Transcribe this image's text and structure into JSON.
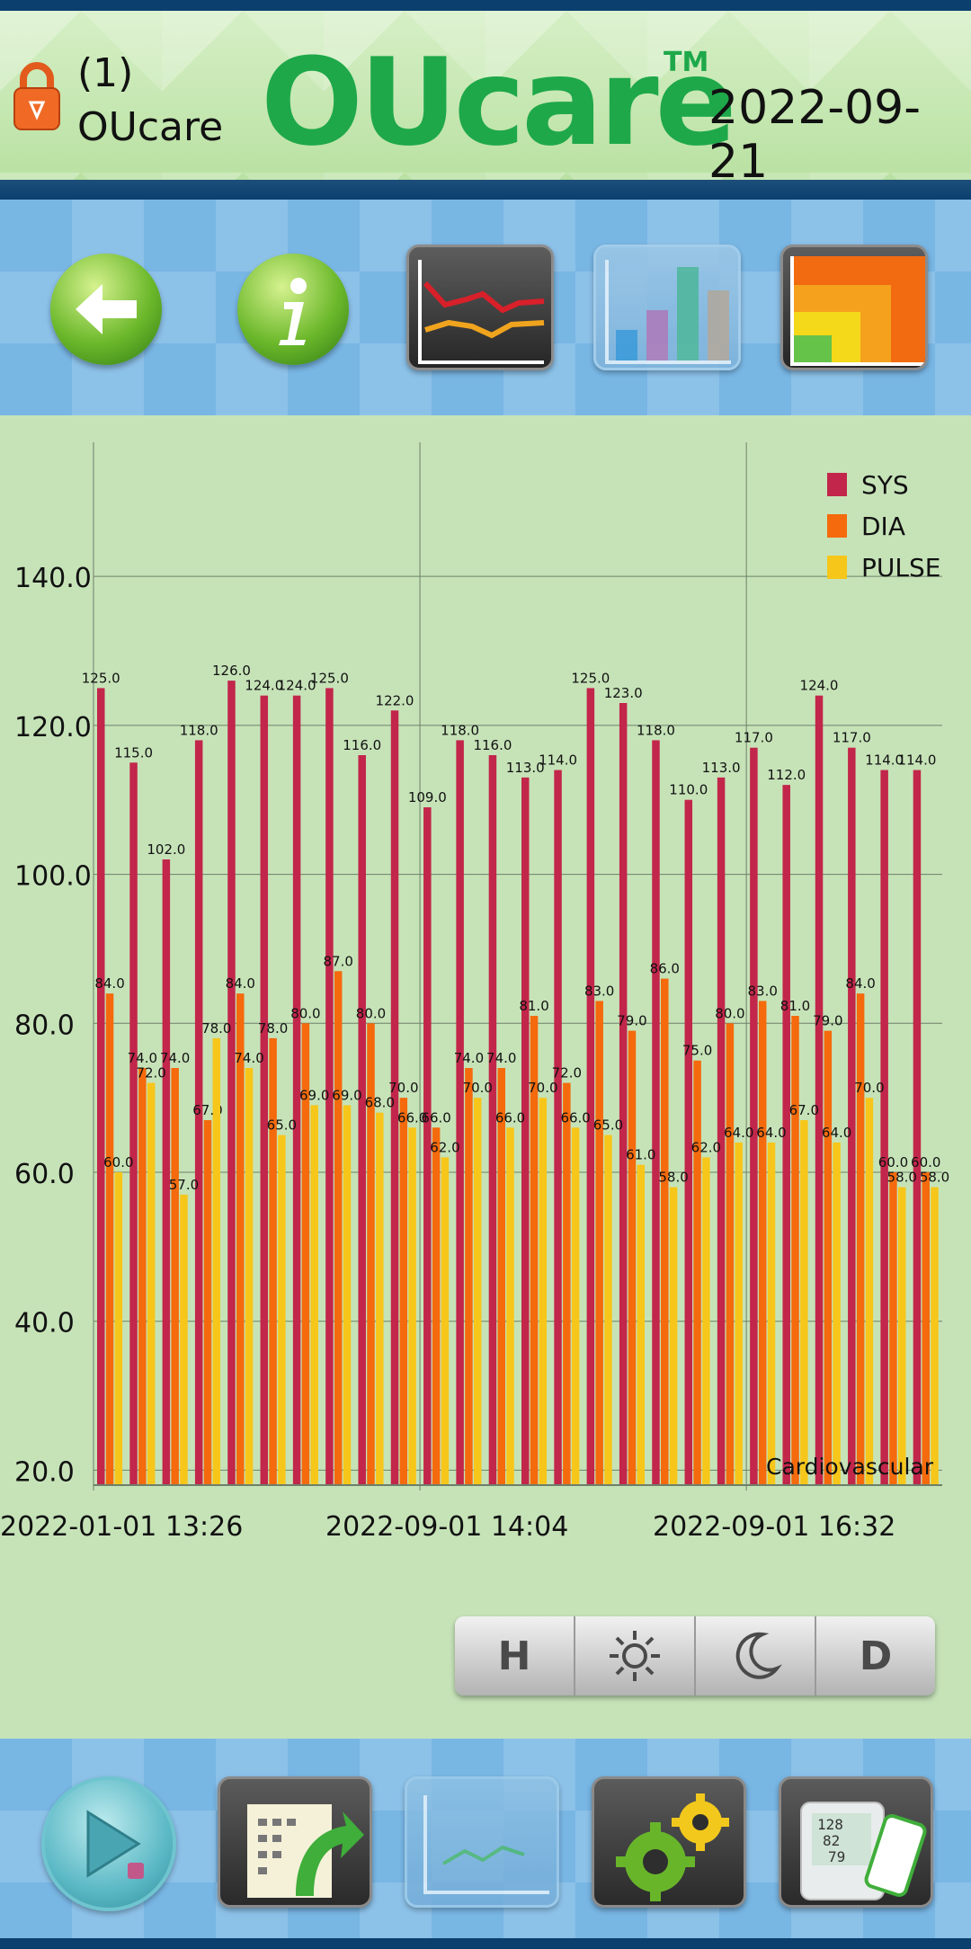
{
  "header": {
    "user_id": "(1)",
    "user_name": "OUcare",
    "logo": "OUcare",
    "trademark": "TM",
    "date": "2022-09-21"
  },
  "toolbar": {
    "icons": [
      "back-arrow-icon",
      "info-icon",
      "line-chart-icon",
      "bar-chart-icon",
      "zone-chart-icon"
    ]
  },
  "period_selector": {
    "options": [
      "H",
      "☼",
      "☾",
      "D"
    ],
    "icons": [
      "hour",
      "sun-icon",
      "moon-icon",
      "day"
    ]
  },
  "bottom_nav": {
    "icons": [
      "play-icon",
      "export-notes-icon",
      "trend-chart-icon",
      "settings-gears-icon",
      "blood-pressure-device-icon"
    ]
  },
  "colors": {
    "sys": "#c2264a",
    "dia": "#f46a0c",
    "pulse": "#f6c61a",
    "background": "#c6e3b8",
    "logo": "#1ea84a"
  },
  "chart_data": {
    "type": "bar",
    "ylim": [
      18,
      158
    ],
    "yticks": [
      "20.0",
      "40.0",
      "60.0",
      "80.0",
      "100.0",
      "120.0",
      "140.0"
    ],
    "ytick_values": [
      20,
      40,
      60,
      80,
      100,
      120,
      140
    ],
    "x_labels": [
      "2022-01-01 13:26",
      "2022-09-01 14:04",
      "2022-09-01 16:32"
    ],
    "annotation": "Cardiovascular",
    "grid": true,
    "legend_position": "top-right",
    "series": [
      {
        "name": "SYS",
        "values": [
          125,
          115,
          102,
          118,
          126,
          124,
          124,
          125,
          116,
          122,
          109,
          118,
          116,
          113,
          114,
          125,
          123,
          118,
          110,
          113,
          117,
          112,
          124,
          117,
          114,
          114
        ]
      },
      {
        "name": "DIA",
        "values": [
          84,
          74,
          74,
          67,
          84,
          78,
          80,
          87,
          80,
          70,
          66,
          74,
          74,
          81,
          72,
          83,
          79,
          86,
          75,
          80,
          83,
          81,
          79,
          84,
          60,
          60
        ]
      },
      {
        "name": "PULSE",
        "values": [
          60,
          72,
          57,
          78,
          74,
          65,
          69,
          69,
          68,
          66,
          62,
          70,
          66,
          70,
          66,
          65,
          61,
          58,
          62,
          64,
          64,
          67,
          64,
          70,
          58,
          58
        ]
      }
    ]
  }
}
